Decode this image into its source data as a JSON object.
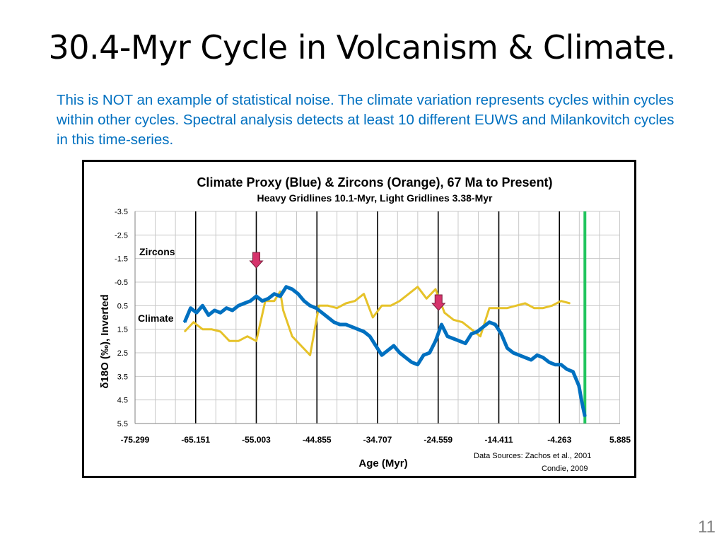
{
  "slide": {
    "title": "30.4-Myr Cycle in Volcanism & Climate.",
    "body": "This is NOT an example of statistical noise.  The climate variation represents cycles within cycles within other cycles.  Spectral analysis detects at least 10 different EUWS and Milankovitch cycles in this time-series.",
    "page_number": "11"
  },
  "colors": {
    "climate_line": "#0070c0",
    "zircon_line": "#e6c229",
    "marker_arrow": "#d6336c",
    "present_line": "#22c55e",
    "subtitle_text": "#0070c0"
  },
  "chart_data": {
    "type": "line",
    "title": "Climate Proxy (Blue) & Zircons (Orange), 67 Ma to Present)",
    "subtitle": "Heavy Gridlines 10.1-Myr, Light Gridlines 3.38-Myr",
    "xlabel": "Age (Myr)",
    "ylabel": "δ18O (‰), Inverted",
    "xlim": [
      -75.299,
      5.885
    ],
    "ylim": [
      -3.5,
      5.5
    ],
    "y_inverted": true,
    "x_ticks": [
      "-75.299",
      "-65.151",
      "-55.003",
      "-44.855",
      "-34.707",
      "-24.559",
      "-14.411",
      "-4.263",
      "5.885"
    ],
    "y_ticks": [
      "-3.5",
      "-2.5",
      "-1.5",
      "-0.5",
      "0.5",
      "1.5",
      "2.5",
      "3.5",
      "4.5",
      "5.5"
    ],
    "heavy_gridline_x": [
      -65.151,
      -55.003,
      -44.855,
      -34.707,
      -24.559,
      -14.411,
      -4.263
    ],
    "light_gridline_step": 3.38,
    "present_line_x": 0,
    "series": [
      {
        "name": "Zircons",
        "color": "#e6c229",
        "x": [
          -67,
          -65.5,
          -64,
          -62.5,
          -61,
          -59.5,
          -58,
          -56.5,
          -55,
          -53.5,
          -52,
          -51,
          -50.5,
          -49,
          -47.5,
          -46,
          -44.5,
          -43,
          -41.5,
          -40,
          -38.5,
          -37,
          -35.5,
          -34,
          -32.5,
          -31,
          -29.5,
          -28,
          -26.5,
          -25,
          -23.5,
          -22,
          -20.5,
          -19,
          -17.5,
          -16,
          -14.5,
          -13,
          -11.5,
          -10,
          -8.5,
          -7,
          -5.5,
          -4,
          -2.5
        ],
        "values": [
          1.6,
          1.2,
          1.5,
          1.5,
          1.6,
          2.0,
          2.0,
          1.8,
          2.0,
          0.3,
          0.3,
          -0.1,
          0.7,
          1.8,
          2.2,
          2.6,
          0.5,
          0.5,
          0.6,
          0.4,
          0.3,
          0.0,
          1.0,
          0.5,
          0.5,
          0.3,
          0.0,
          -0.3,
          0.2,
          -0.2,
          0.8,
          1.1,
          1.2,
          1.5,
          1.8,
          0.6,
          0.6,
          0.6,
          0.5,
          0.4,
          0.6,
          0.6,
          0.5,
          0.3,
          0.4
        ]
      },
      {
        "name": "Climate",
        "color": "#0070c0",
        "x": [
          -67,
          -66,
          -65,
          -64,
          -63,
          -62,
          -61,
          -60,
          -59,
          -58,
          -57,
          -56,
          -55,
          -54,
          -53,
          -52,
          -51,
          -50,
          -49,
          -48,
          -47,
          -46,
          -45,
          -44,
          -43,
          -42,
          -41,
          -40,
          -39,
          -38,
          -37,
          -36,
          -35,
          -34,
          -33,
          -32,
          -31,
          -30,
          -29,
          -28,
          -27,
          -26,
          -25,
          -24,
          -23,
          -22,
          -21,
          -20,
          -19,
          -18,
          -17,
          -16,
          -15,
          -14,
          -13,
          -12,
          -11,
          -10,
          -9,
          -8,
          -7,
          -6,
          -5,
          -4,
          -3,
          -2,
          -1,
          -0.5,
          0
        ],
        "values": [
          1.2,
          0.6,
          0.8,
          0.5,
          0.9,
          0.7,
          0.8,
          0.6,
          0.7,
          0.5,
          0.4,
          0.3,
          0.1,
          0.3,
          0.2,
          0.0,
          0.1,
          -0.3,
          -0.2,
          0.0,
          0.3,
          0.5,
          0.6,
          0.8,
          1.0,
          1.2,
          1.3,
          1.3,
          1.4,
          1.5,
          1.6,
          1.8,
          2.2,
          2.6,
          2.4,
          2.2,
          2.5,
          2.7,
          2.9,
          3.0,
          2.6,
          2.5,
          2.0,
          1.3,
          1.8,
          1.9,
          2.0,
          2.1,
          1.7,
          1.6,
          1.4,
          1.2,
          1.3,
          1.7,
          2.3,
          2.5,
          2.6,
          2.7,
          2.8,
          2.6,
          2.7,
          2.9,
          3.0,
          3.0,
          3.2,
          3.3,
          3.9,
          4.6,
          5.2
        ]
      }
    ],
    "annotations": [
      {
        "text": "Zircons",
        "kind": "series-label"
      },
      {
        "text": "Climate",
        "kind": "series-label"
      },
      {
        "text": "↓",
        "kind": "arrow-marker",
        "x": -55.0,
        "y": -1.4
      },
      {
        "text": "↓",
        "kind": "arrow-marker",
        "x": -24.5,
        "y": 0.4
      }
    ],
    "source_lines": [
      "Data Sources:  Zachos et al., 2001",
      "Condie, 2009"
    ],
    "grid": true
  }
}
